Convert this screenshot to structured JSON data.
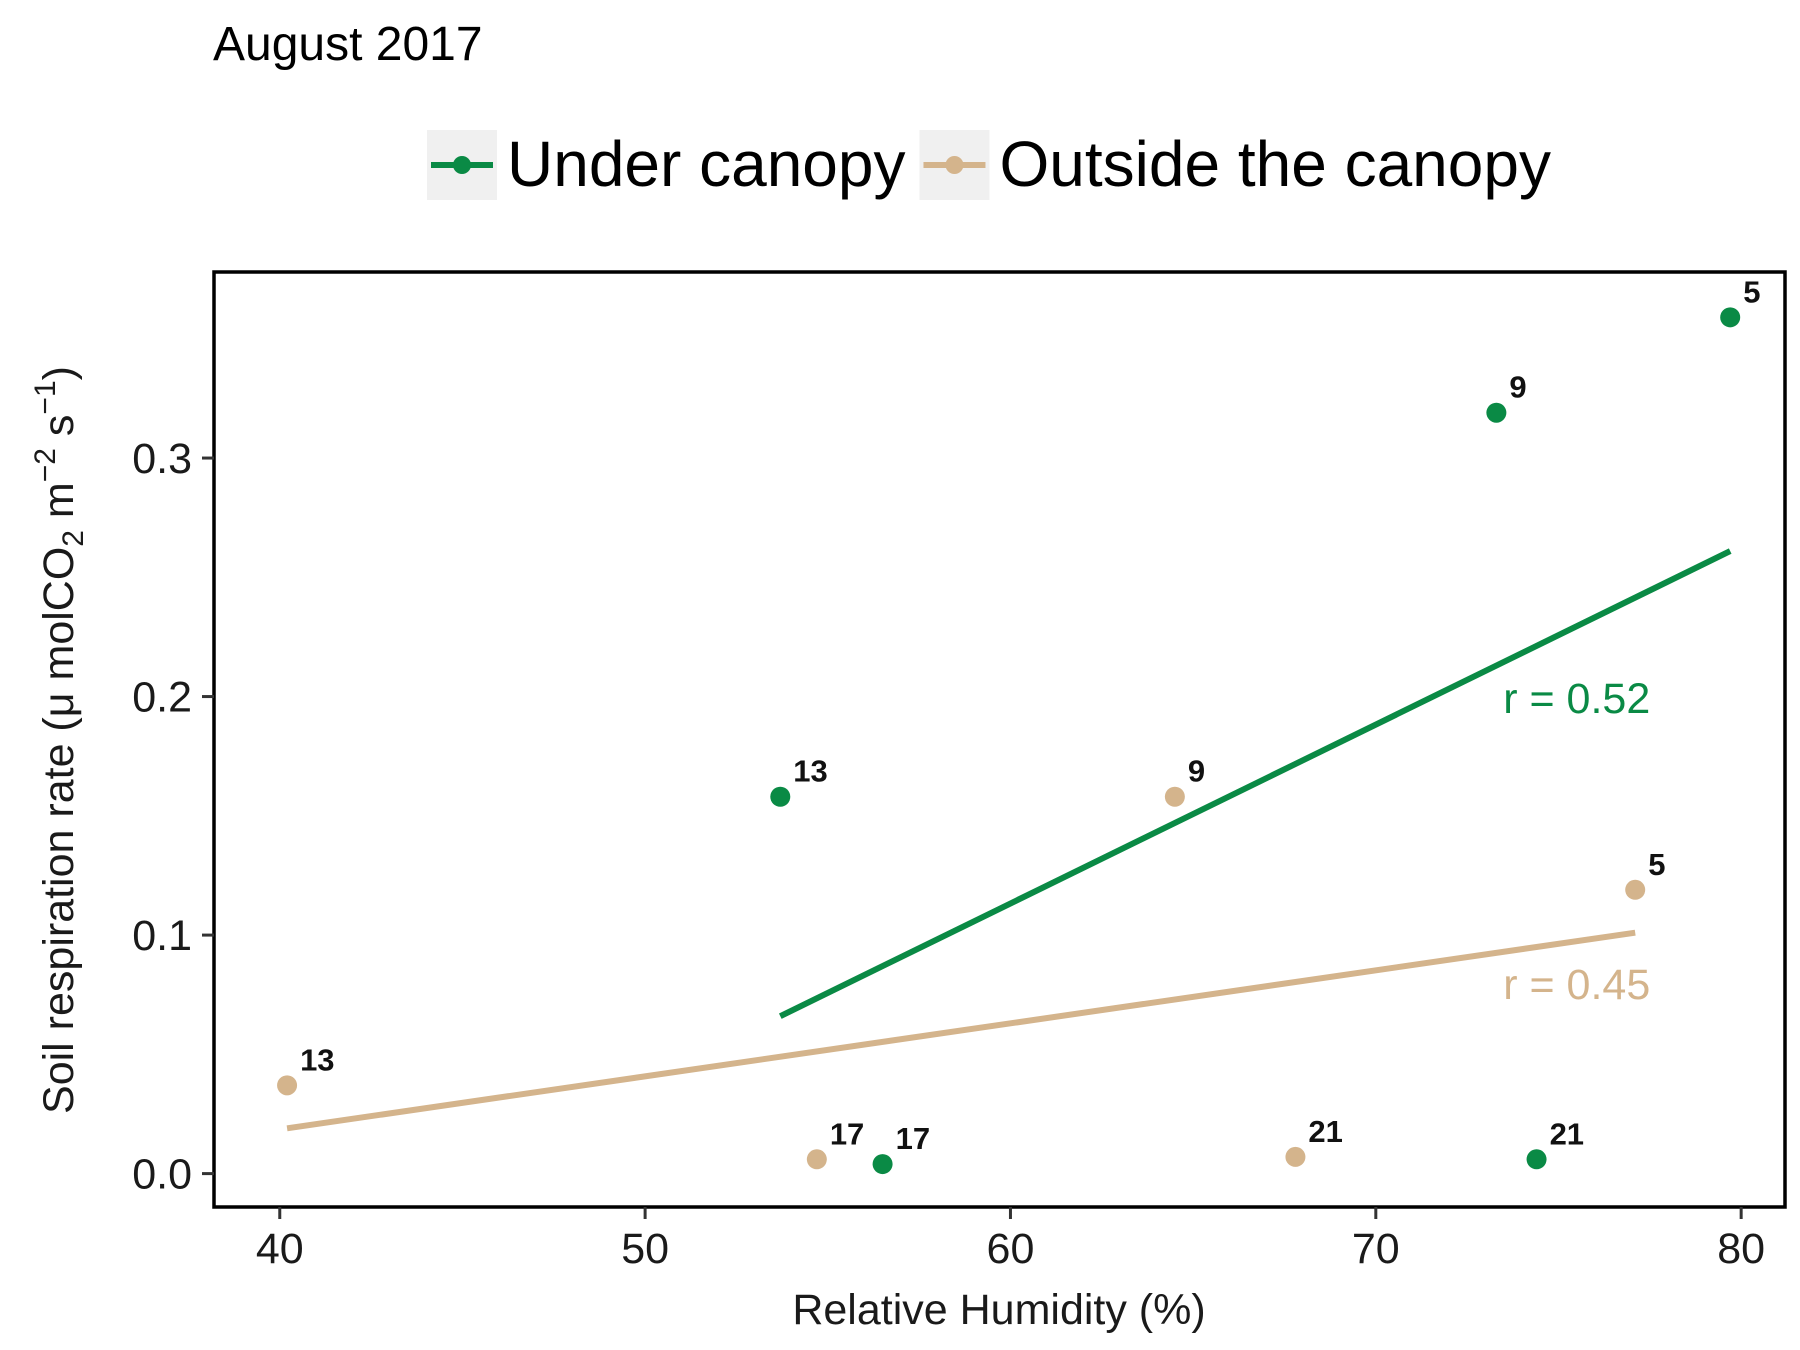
{
  "chart_data": {
    "type": "scatter",
    "title": "August 2017",
    "xlabel": "Relative Humidity (%)",
    "ylabel": {
      "prefix": "Soil respiration rate  (",
      "mu": "μ",
      "unit_main": " molCO",
      "co2_sub": "2",
      "m": " m",
      "m_exp": "−2",
      "s": " s",
      "s_exp": "−1",
      "suffix": ")"
    },
    "xlim": [
      38.2,
      81.2
    ],
    "ylim": [
      -0.014,
      0.378
    ],
    "x_ticks": [
      40,
      50,
      60,
      70,
      80
    ],
    "x_tick_labels": [
      "40",
      "50",
      "60",
      "70",
      "80"
    ],
    "y_ticks": [
      0.0,
      0.1,
      0.2,
      0.3
    ],
    "y_tick_labels": [
      "0.0",
      "0.1",
      "0.2",
      "0.3"
    ],
    "grid": false,
    "legend_position": "top",
    "series": [
      {
        "name": "Under canopy",
        "color": "#0a8a45",
        "points": [
          {
            "x": 53.7,
            "y": 0.158,
            "label": "13"
          },
          {
            "x": 56.5,
            "y": 0.004,
            "label": "17"
          },
          {
            "x": 73.3,
            "y": 0.319,
            "label": "9"
          },
          {
            "x": 74.4,
            "y": 0.006,
            "label": "21"
          },
          {
            "x": 79.7,
            "y": 0.359,
            "label": "5"
          }
        ],
        "trend": {
          "x0": 53.7,
          "y0": 0.066,
          "x1": 79.7,
          "y1": 0.261
        },
        "annotation": {
          "text": "r = 0.52",
          "x": 75.5,
          "y": 0.199
        }
      },
      {
        "name": "Outside the canopy",
        "color": "#d4b48c",
        "points": [
          {
            "x": 40.2,
            "y": 0.037,
            "label": "13"
          },
          {
            "x": 54.7,
            "y": 0.006,
            "label": "17"
          },
          {
            "x": 64.5,
            "y": 0.158,
            "label": "9"
          },
          {
            "x": 67.8,
            "y": 0.007,
            "label": "21"
          },
          {
            "x": 77.1,
            "y": 0.119,
            "label": "5"
          }
        ],
        "trend": {
          "x0": 40.2,
          "y0": 0.019,
          "x1": 77.1,
          "y1": 0.101
        },
        "annotation": {
          "text": "r = 0.45",
          "x": 75.5,
          "y": 0.079
        }
      }
    ]
  }
}
